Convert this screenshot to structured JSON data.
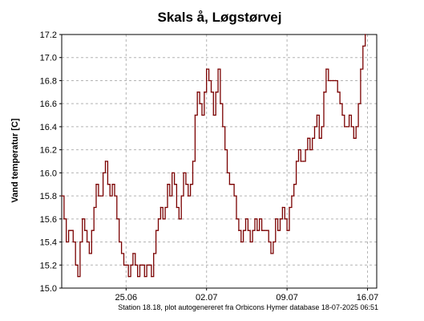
{
  "chart_data": {
    "type": "line",
    "title": "Skals å, Løgstørvej",
    "ylabel": "Vand temperatur [C]",
    "xlabel": "",
    "footer": "Station 18.18, plot autogenereret fra Orbicons Hymer database 18-07-2025 06:51",
    "ylim": [
      15.0,
      17.2
    ],
    "yticks": [
      "15.0",
      "15.2",
      "15.4",
      "15.6",
      "15.8",
      "16.0",
      "16.2",
      "16.4",
      "16.6",
      "16.8",
      "17.0",
      "17.2"
    ],
    "xlim": [
      0,
      27.4
    ],
    "xticks": [
      {
        "label": "25.06",
        "x": 5.6
      },
      {
        "label": "02.07",
        "x": 12.6
      },
      {
        "label": "09.07",
        "x": 19.6
      },
      {
        "label": "16.07",
        "x": 26.6
      }
    ],
    "grid": true,
    "line_color": "#7a0000",
    "series": [
      {
        "values": [
          [
            0.0,
            15.8
          ],
          [
            0.2,
            15.6
          ],
          [
            0.4,
            15.4
          ],
          [
            0.6,
            15.5
          ],
          [
            0.8,
            15.5
          ],
          [
            1.0,
            15.4
          ],
          [
            1.2,
            15.2
          ],
          [
            1.4,
            15.1
          ],
          [
            1.6,
            15.4
          ],
          [
            1.8,
            15.6
          ],
          [
            2.0,
            15.5
          ],
          [
            2.2,
            15.4
          ],
          [
            2.4,
            15.3
          ],
          [
            2.6,
            15.5
          ],
          [
            2.8,
            15.7
          ],
          [
            3.0,
            15.9
          ],
          [
            3.2,
            15.8
          ],
          [
            3.4,
            15.8
          ],
          [
            3.6,
            16.0
          ],
          [
            3.8,
            16.1
          ],
          [
            4.0,
            15.9
          ],
          [
            4.2,
            15.8
          ],
          [
            4.4,
            15.9
          ],
          [
            4.6,
            15.8
          ],
          [
            4.8,
            15.6
          ],
          [
            5.0,
            15.4
          ],
          [
            5.2,
            15.3
          ],
          [
            5.4,
            15.2
          ],
          [
            5.6,
            15.2
          ],
          [
            5.8,
            15.1
          ],
          [
            6.0,
            15.2
          ],
          [
            6.2,
            15.3
          ],
          [
            6.4,
            15.2
          ],
          [
            6.6,
            15.1
          ],
          [
            6.8,
            15.2
          ],
          [
            7.0,
            15.2
          ],
          [
            7.2,
            15.1
          ],
          [
            7.4,
            15.2
          ],
          [
            7.6,
            15.2
          ],
          [
            7.8,
            15.1
          ],
          [
            8.0,
            15.3
          ],
          [
            8.2,
            15.5
          ],
          [
            8.4,
            15.6
          ],
          [
            8.6,
            15.7
          ],
          [
            8.8,
            15.6
          ],
          [
            9.0,
            15.7
          ],
          [
            9.2,
            15.9
          ],
          [
            9.4,
            15.8
          ],
          [
            9.6,
            16.0
          ],
          [
            9.8,
            15.9
          ],
          [
            10.0,
            15.7
          ],
          [
            10.2,
            15.6
          ],
          [
            10.4,
            15.8
          ],
          [
            10.6,
            16.0
          ],
          [
            10.8,
            15.9
          ],
          [
            11.0,
            15.8
          ],
          [
            11.2,
            15.9
          ],
          [
            11.4,
            16.1
          ],
          [
            11.6,
            16.5
          ],
          [
            11.8,
            16.7
          ],
          [
            12.0,
            16.6
          ],
          [
            12.2,
            16.5
          ],
          [
            12.4,
            16.7
          ],
          [
            12.6,
            16.9
          ],
          [
            12.8,
            16.8
          ],
          [
            13.0,
            16.7
          ],
          [
            13.2,
            16.5
          ],
          [
            13.4,
            16.7
          ],
          [
            13.6,
            16.9
          ],
          [
            13.8,
            16.6
          ],
          [
            14.0,
            16.4
          ],
          [
            14.2,
            16.2
          ],
          [
            14.4,
            16.0
          ],
          [
            14.6,
            15.9
          ],
          [
            14.8,
            15.9
          ],
          [
            15.0,
            15.8
          ],
          [
            15.2,
            15.6
          ],
          [
            15.4,
            15.5
          ],
          [
            15.6,
            15.4
          ],
          [
            15.8,
            15.5
          ],
          [
            16.0,
            15.6
          ],
          [
            16.2,
            15.5
          ],
          [
            16.4,
            15.4
          ],
          [
            16.6,
            15.5
          ],
          [
            16.8,
            15.6
          ],
          [
            17.0,
            15.5
          ],
          [
            17.2,
            15.6
          ],
          [
            17.4,
            15.5
          ],
          [
            17.6,
            15.5
          ],
          [
            17.8,
            15.5
          ],
          [
            18.0,
            15.4
          ],
          [
            18.2,
            15.3
          ],
          [
            18.4,
            15.4
          ],
          [
            18.6,
            15.6
          ],
          [
            18.8,
            15.5
          ],
          [
            19.0,
            15.6
          ],
          [
            19.2,
            15.7
          ],
          [
            19.4,
            15.6
          ],
          [
            19.6,
            15.5
          ],
          [
            19.8,
            15.7
          ],
          [
            20.0,
            15.8
          ],
          [
            20.2,
            15.9
          ],
          [
            20.4,
            16.1
          ],
          [
            20.6,
            16.2
          ],
          [
            20.8,
            16.1
          ],
          [
            21.0,
            16.1
          ],
          [
            21.2,
            16.2
          ],
          [
            21.4,
            16.3
          ],
          [
            21.6,
            16.2
          ],
          [
            21.8,
            16.3
          ],
          [
            22.0,
            16.4
          ],
          [
            22.2,
            16.5
          ],
          [
            22.4,
            16.3
          ],
          [
            22.6,
            16.4
          ],
          [
            22.8,
            16.7
          ],
          [
            23.0,
            16.9
          ],
          [
            23.2,
            16.8
          ],
          [
            23.4,
            16.8
          ],
          [
            23.6,
            16.8
          ],
          [
            23.8,
            16.8
          ],
          [
            24.0,
            16.7
          ],
          [
            24.2,
            16.6
          ],
          [
            24.4,
            16.5
          ],
          [
            24.6,
            16.4
          ],
          [
            24.8,
            16.4
          ],
          [
            25.0,
            16.5
          ],
          [
            25.2,
            16.4
          ],
          [
            25.4,
            16.3
          ],
          [
            25.6,
            16.4
          ],
          [
            25.8,
            16.6
          ],
          [
            26.0,
            16.9
          ],
          [
            26.2,
            17.1
          ],
          [
            26.4,
            17.2
          ]
        ]
      }
    ]
  }
}
